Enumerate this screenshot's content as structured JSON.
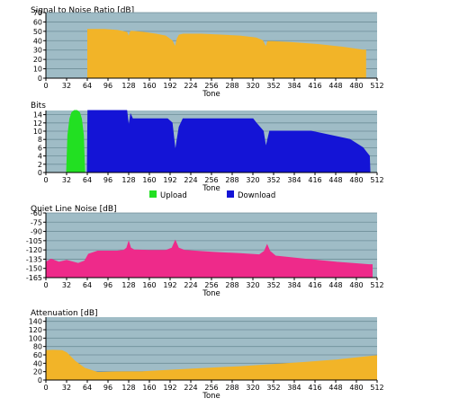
{
  "theme": {
    "plot_bg": "#9fbcc6",
    "grid": "#6f8e99",
    "axis": "#000000",
    "amber": "#f2b428",
    "magenta": "#ee2a8a",
    "green": "#22e022",
    "blue": "#1414d6"
  },
  "chart_data": [
    {
      "id": "snr",
      "type": "area",
      "title": "Signal to Noise Ratio [dB]",
      "xlabel": "Tone",
      "ylim": [
        0,
        70
      ],
      "yticks": [
        0,
        10,
        20,
        30,
        40,
        50,
        60,
        70
      ],
      "xlim": [
        0,
        512
      ],
      "xticks": [
        0,
        32,
        64,
        96,
        128,
        160,
        192,
        224,
        256,
        288,
        320,
        352,
        384,
        416,
        448,
        480,
        512
      ],
      "grid": true,
      "series": [
        {
          "color": "#f2b428",
          "x": [
            64,
            70,
            90,
            110,
            125,
            128,
            131,
            134,
            150,
            170,
            185,
            195,
            200,
            203,
            206,
            212,
            240,
            270,
            300,
            325,
            335,
            340,
            343,
            346,
            350,
            380,
            420,
            460,
            490,
            495
          ],
          "y": [
            52,
            52,
            52,
            51,
            49,
            44,
            50,
            50,
            49,
            47,
            45,
            40,
            33,
            42,
            46,
            47,
            47,
            46,
            45,
            43,
            40,
            33,
            39,
            39,
            39,
            38,
            36,
            33,
            30,
            30
          ]
        }
      ]
    },
    {
      "id": "bits",
      "type": "bar",
      "title": "Bits",
      "xlabel": "Tone",
      "ylim": [
        0,
        15
      ],
      "yticks": [
        0,
        2,
        4,
        6,
        8,
        10,
        12,
        14
      ],
      "xlim": [
        0,
        512
      ],
      "xticks": [
        0,
        32,
        64,
        96,
        128,
        160,
        192,
        224,
        256,
        288,
        320,
        352,
        384,
        416,
        448,
        480,
        512
      ],
      "grid": true,
      "legend": {
        "position": "bottom",
        "items": [
          {
            "label": "Upload",
            "color": "#22e022"
          },
          {
            "label": "Download",
            "color": "#1414d6"
          }
        ]
      },
      "series": [
        {
          "name": "Upload",
          "color": "#22e022",
          "x": [
            32,
            34,
            37,
            40,
            44,
            48,
            52,
            55,
            58,
            60
          ],
          "y": [
            0,
            9,
            13,
            14.5,
            15,
            15,
            14.5,
            13,
            9,
            0
          ]
        },
        {
          "name": "Download",
          "color": "#1414d6",
          "x": [
            64,
            65,
            125,
            128,
            131,
            134,
            188,
            195,
            200,
            203,
            206,
            212,
            320,
            325,
            336,
            340,
            343,
            346,
            350,
            410,
            470,
            490,
            495,
            500,
            501
          ],
          "y": [
            0,
            15,
            15,
            11,
            14,
            13,
            13,
            12,
            5,
            8,
            11,
            13,
            13,
            12,
            10,
            6,
            8,
            10,
            10,
            10,
            8,
            6,
            5,
            4,
            0
          ]
        }
      ]
    },
    {
      "id": "qln",
      "type": "area",
      "title": "Quiet Line Noise [dB]",
      "xlabel": "Tone",
      "ylim": [
        -165,
        -60
      ],
      "yticks": [
        -165,
        -150,
        -135,
        -120,
        -105,
        -90,
        -75,
        -60
      ],
      "xlim": [
        0,
        512
      ],
      "xticks": [
        0,
        32,
        64,
        96,
        128,
        160,
        192,
        224,
        256,
        288,
        320,
        352,
        384,
        416,
        448,
        480,
        512
      ],
      "grid": true,
      "series": [
        {
          "color": "#ee2a8a",
          "x": [
            0,
            8,
            20,
            32,
            50,
            60,
            66,
            80,
            110,
            120,
            125,
            128,
            131,
            136,
            160,
            185,
            195,
            200,
            205,
            215,
            260,
            300,
            330,
            338,
            342,
            346,
            355,
            400,
            450,
            500,
            505
          ],
          "y": [
            -140,
            -135,
            -140,
            -137,
            -142,
            -138,
            -127,
            -122,
            -122,
            -121,
            -117,
            -107,
            -117,
            -120,
            -121,
            -121,
            -117,
            -105,
            -117,
            -121,
            -124,
            -126,
            -128,
            -122,
            -112,
            -122,
            -130,
            -135,
            -140,
            -144,
            -144
          ]
        }
      ]
    },
    {
      "id": "atten",
      "type": "area",
      "title": "Attenuation [dB]",
      "xlabel": "Tone",
      "ylim": [
        0,
        150
      ],
      "yticks": [
        0,
        20,
        40,
        60,
        80,
        100,
        120,
        140
      ],
      "xlim": [
        0,
        512
      ],
      "xticks": [
        0,
        32,
        64,
        96,
        128,
        160,
        192,
        224,
        256,
        288,
        320,
        352,
        384,
        416,
        448,
        480,
        512
      ],
      "grid": true,
      "series": [
        {
          "color": "#f2b428",
          "x": [
            0,
            10,
            25,
            32,
            45,
            60,
            80,
            100,
            150,
            200,
            250,
            300,
            350,
            400,
            450,
            512
          ],
          "y": [
            70,
            71,
            70,
            65,
            45,
            28,
            18,
            19,
            20,
            24,
            28,
            32,
            37,
            42,
            48,
            58
          ]
        }
      ]
    }
  ]
}
